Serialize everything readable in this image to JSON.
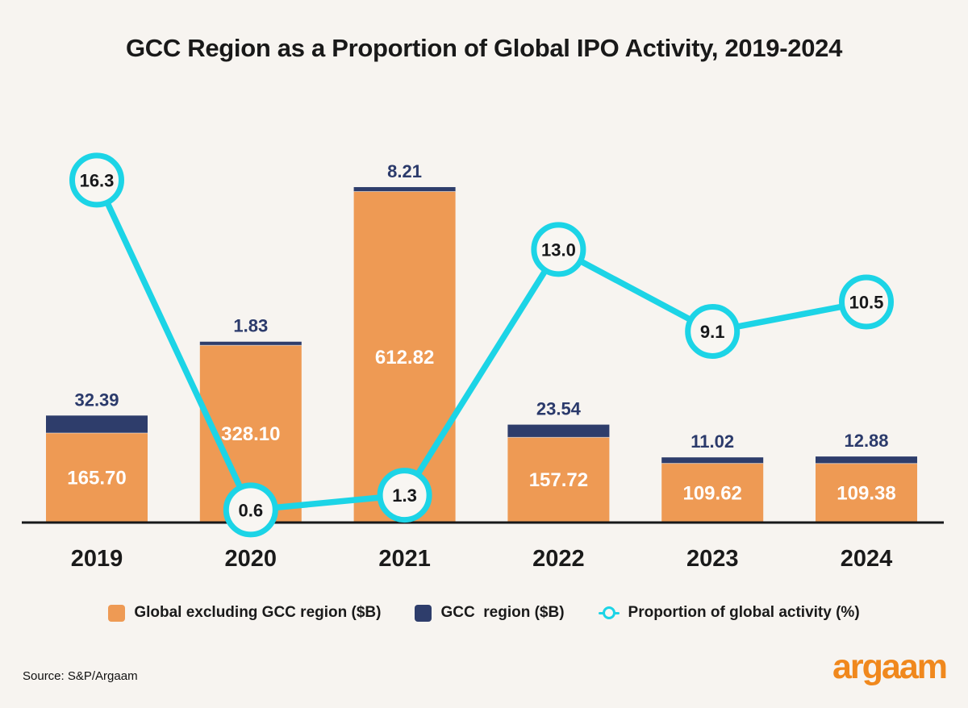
{
  "title": "GCC Region as a Proportion of Global IPO Activity, 2019-2024",
  "source": "Source: S&P/Argaam",
  "brand": "argaam",
  "colors": {
    "background": "#F7F4F0",
    "bar_global": "#EE9A54",
    "bar_gcc": "#2E3D6B",
    "line": "#1CD4E6",
    "circle_fill": "#F8F6F2",
    "axis": "#17181A",
    "bar_top_label": "#2B3A6B",
    "inside_label": "#FFFFFF",
    "text_dark": "#1A1A1A",
    "logo_orange": "#F0881D"
  },
  "legend": {
    "items": [
      {
        "label": "Global excluding GCC region ($B)",
        "marker": "square",
        "color": "#EE9A54"
      },
      {
        "label": "GCC  region ($B)",
        "marker": "square",
        "color": "#2E3D6B"
      },
      {
        "label": "Proportion of global activity (%)",
        "marker": "line-circle",
        "color": "#1CD4E6"
      }
    ]
  },
  "chart_data": {
    "type": "bar",
    "subtype": "stacked-bars-with-percentage-line",
    "title": "GCC Region as a Proportion of Global IPO Activity, 2019-2024",
    "categories": [
      "2019",
      "2020",
      "2021",
      "2022",
      "2023",
      "2024"
    ],
    "series": [
      {
        "name": "Global excluding GCC region ($B)",
        "type": "bar",
        "stack": "ipo",
        "color": "#EE9A54",
        "values": [
          165.7,
          328.1,
          612.82,
          157.72,
          109.62,
          109.38
        ],
        "value_labels": [
          "165.70",
          "328.10",
          "612.82",
          "157.72",
          "109.62",
          "109.38"
        ]
      },
      {
        "name": "GCC region ($B)",
        "type": "bar",
        "stack": "ipo",
        "color": "#2E3D6B",
        "values": [
          32.39,
          1.83,
          8.21,
          23.54,
          11.02,
          12.88
        ],
        "value_labels": [
          "32.39",
          "1.83",
          "8.21",
          "23.54",
          "11.02",
          "12.88"
        ]
      },
      {
        "name": "Proportion of global activity (%)",
        "type": "line",
        "color": "#1CD4E6",
        "values": [
          16.3,
          0.6,
          1.3,
          13.0,
          9.1,
          10.5
        ],
        "value_labels": [
          "16.3",
          "0.6",
          "1.3",
          "13.0",
          "9.1",
          "10.5"
        ]
      }
    ],
    "xlabel": "",
    "ylabel": "",
    "value_axis_hidden": true,
    "grid": false,
    "legend_position": "bottom"
  }
}
